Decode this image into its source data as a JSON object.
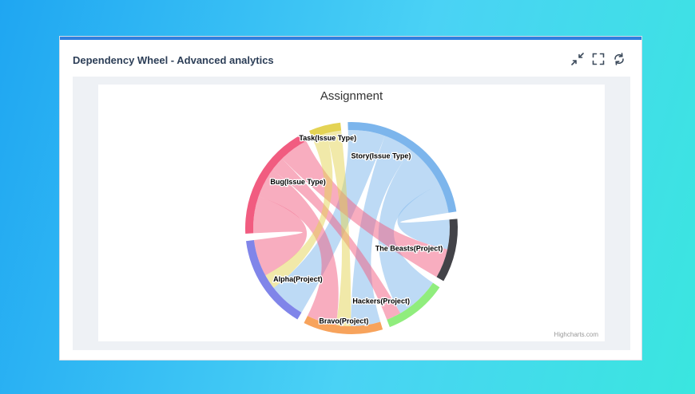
{
  "widget": {
    "title": "Dependency Wheel - Advanced analytics",
    "tools": [
      {
        "name": "collapse-icon"
      },
      {
        "name": "fullscreen-icon"
      },
      {
        "name": "refresh-icon"
      }
    ],
    "accent_color": "#2f7fde"
  },
  "chart_data": {
    "type": "dependency-wheel",
    "title": "Assignment",
    "credits": "Highcharts.com",
    "nodes": [
      {
        "id": "story",
        "name": "Story(Issue Type)",
        "color": "#7cb5ec"
      },
      {
        "id": "beasts",
        "name": "The Beasts(Project)",
        "color": "#434348"
      },
      {
        "id": "hackers",
        "name": "Hackers(Project)",
        "color": "#90ed7d"
      },
      {
        "id": "bravo",
        "name": "Bravo(Project)",
        "color": "#f7a35c"
      },
      {
        "id": "alpha",
        "name": "Alpha(Project)",
        "color": "#8085e9"
      },
      {
        "id": "bug",
        "name": "Bug(Issue Type)",
        "color": "#f15c80"
      },
      {
        "id": "task",
        "name": "Task(Issue Type)",
        "color": "#e4d354"
      }
    ],
    "links": [
      {
        "from": "story",
        "to": "beasts",
        "weight": 4
      },
      {
        "from": "story",
        "to": "hackers",
        "weight": 6
      },
      {
        "from": "story",
        "to": "bravo",
        "weight": 4
      },
      {
        "from": "story",
        "to": "alpha",
        "weight": 5
      },
      {
        "from": "bug",
        "to": "beasts",
        "weight": 4
      },
      {
        "from": "bug",
        "to": "hackers",
        "weight": 2
      },
      {
        "from": "bug",
        "to": "bravo",
        "weight": 4
      },
      {
        "from": "bug",
        "to": "alpha",
        "weight": 5
      },
      {
        "from": "task",
        "to": "bravo",
        "weight": 2
      },
      {
        "from": "task",
        "to": "alpha",
        "weight": 2
      }
    ]
  }
}
